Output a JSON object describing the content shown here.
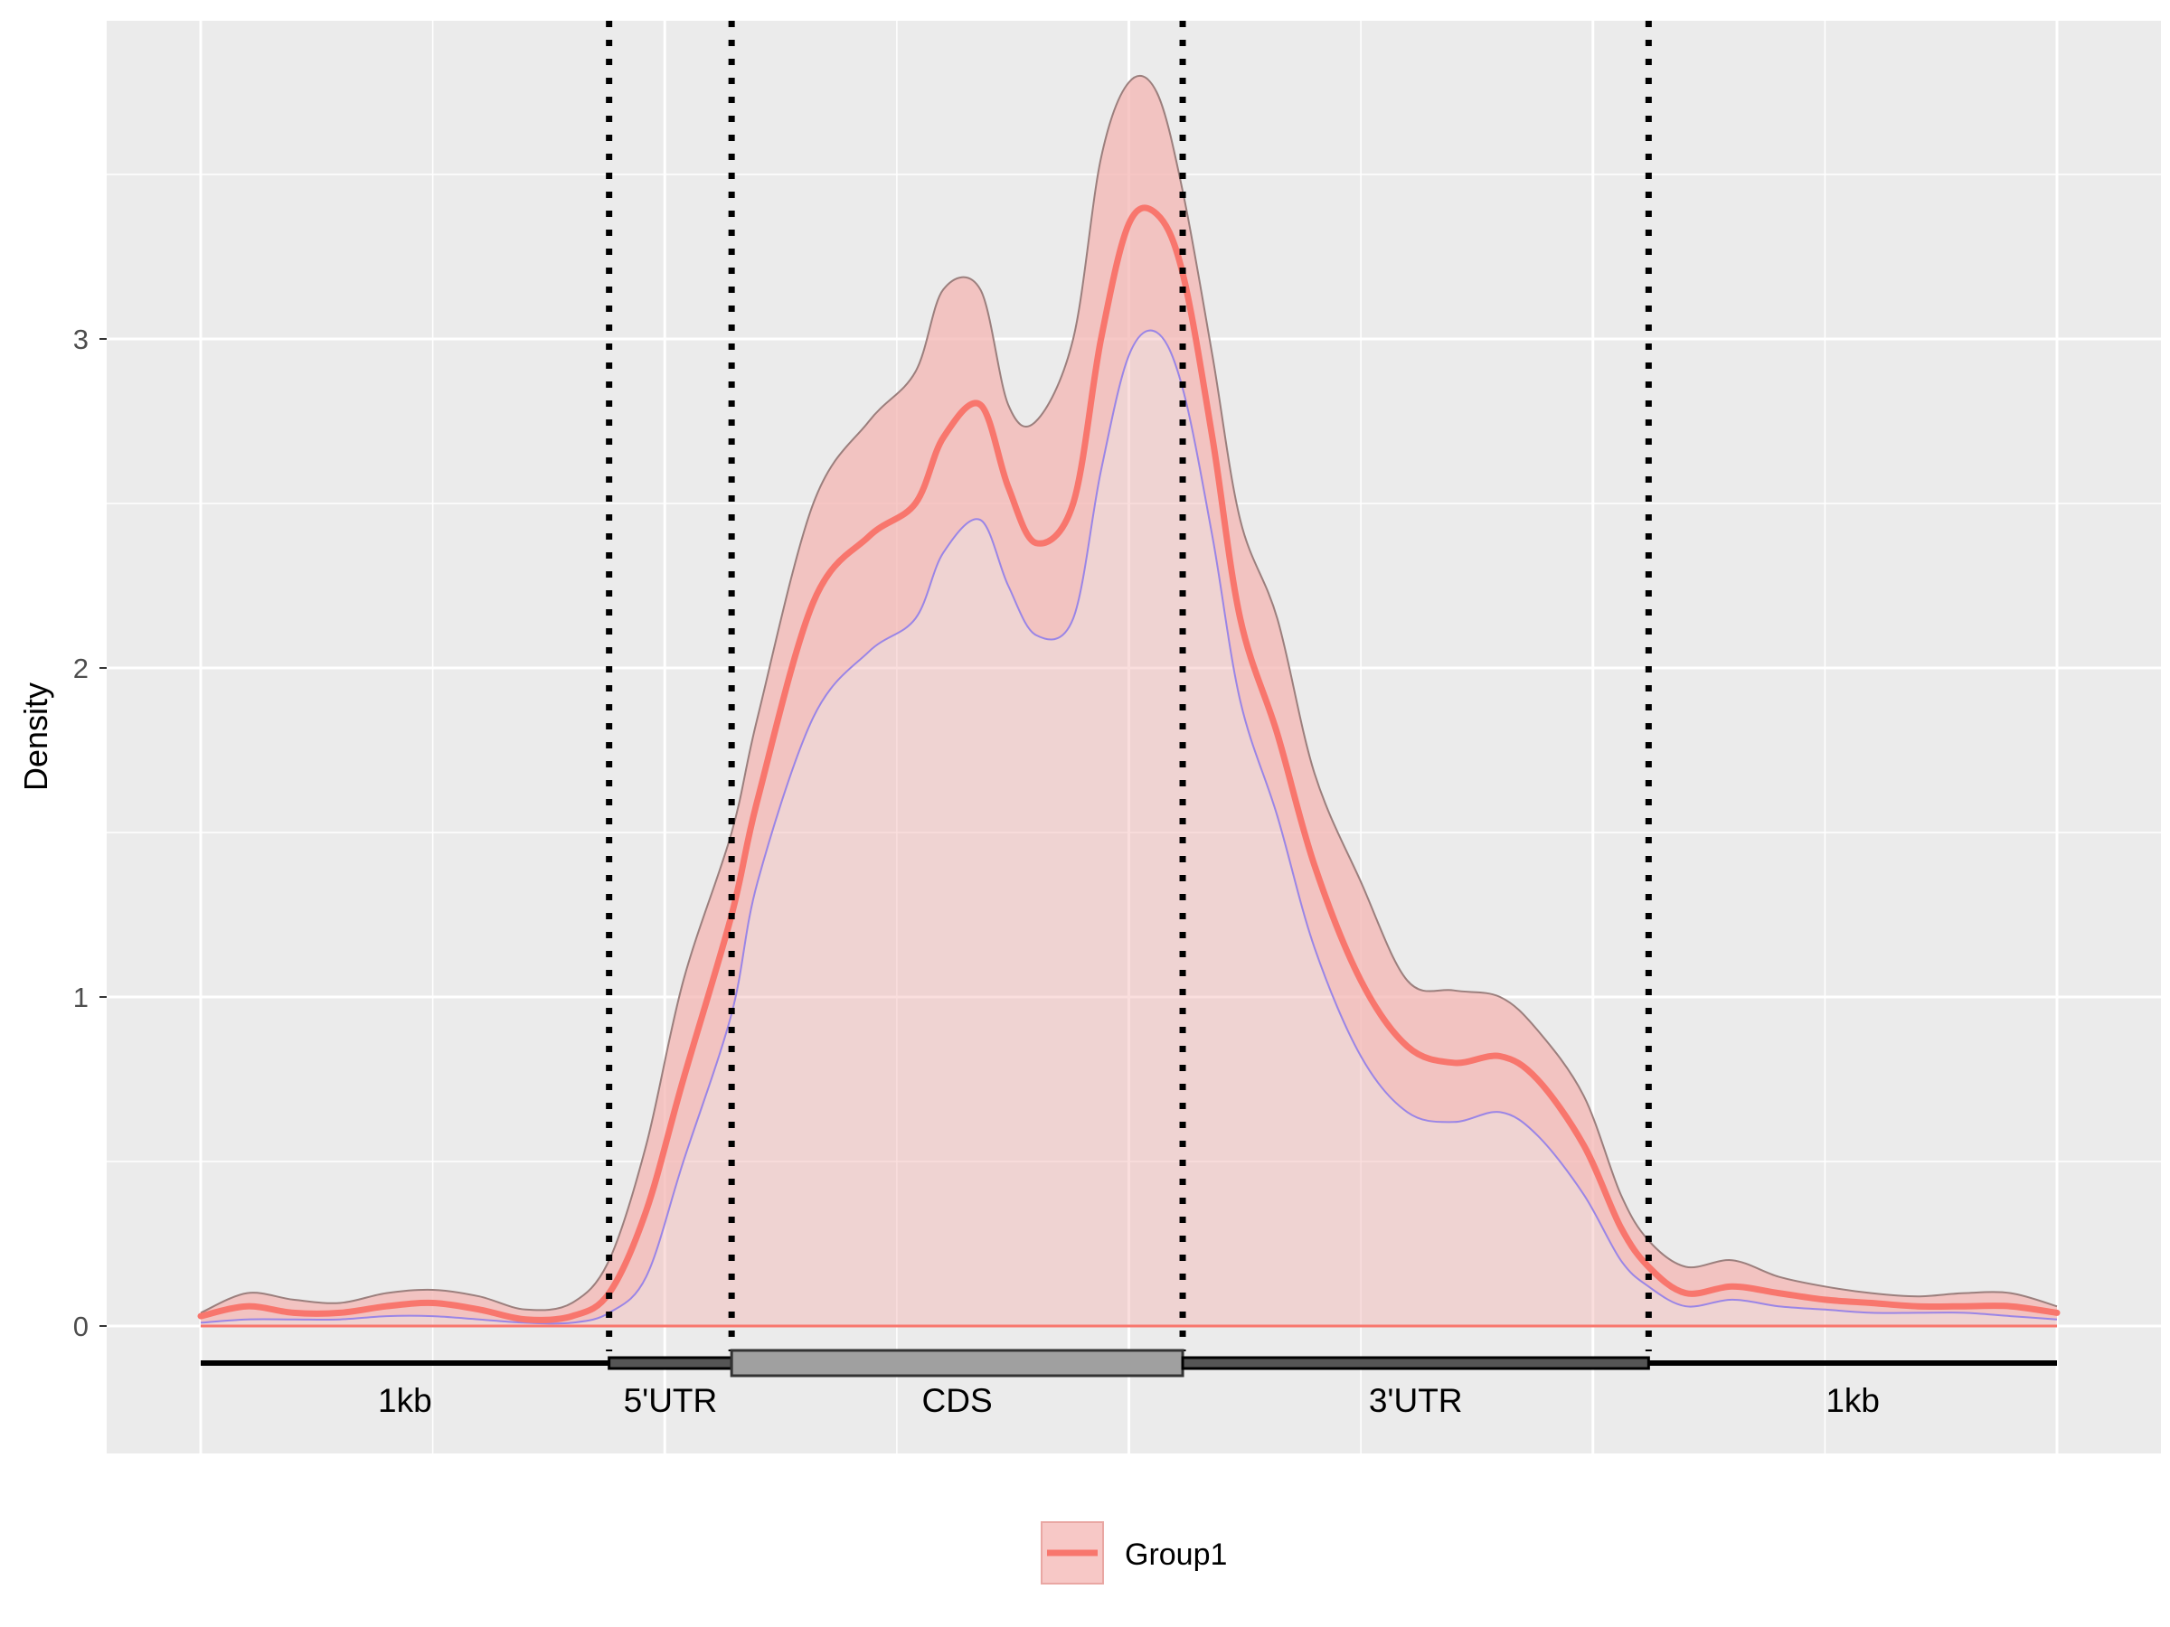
{
  "chart_data": {
    "type": "area",
    "ylabel": "Density",
    "xlim": [
      0,
      1
    ],
    "ylim": [
      -0.37,
      4.0
    ],
    "y_ticks": [
      0,
      1,
      2,
      3
    ],
    "y_tick_labels": [
      "0",
      "1",
      "2",
      "3"
    ],
    "grid": true,
    "legend": {
      "position": "bottom",
      "entries": [
        "Group1"
      ]
    },
    "boundaries": [
      0.22,
      0.286,
      0.529,
      0.78
    ],
    "regions": [
      {
        "label": "1kb",
        "start": 0.0,
        "end": 0.22
      },
      {
        "label": "5'UTR",
        "start": 0.22,
        "end": 0.286
      },
      {
        "label": "CDS",
        "start": 0.286,
        "end": 0.529
      },
      {
        "label": "3'UTR",
        "start": 0.529,
        "end": 0.78
      },
      {
        "label": "1kb",
        "start": 0.78,
        "end": 1.0
      }
    ],
    "series": [
      {
        "name": "Group1",
        "color": "#F8766D",
        "ribbon_color": "#F4B6B3",
        "upper_color": "#9B7F7D",
        "lower_color": "#9A85E6",
        "x": [
          0.0,
          0.025,
          0.05,
          0.075,
          0.1,
          0.125,
          0.15,
          0.175,
          0.2,
          0.22,
          0.24,
          0.26,
          0.286,
          0.3,
          0.33,
          0.36,
          0.385,
          0.4,
          0.42,
          0.435,
          0.45,
          0.47,
          0.485,
          0.5,
          0.515,
          0.529,
          0.545,
          0.56,
          0.58,
          0.6,
          0.625,
          0.65,
          0.675,
          0.7,
          0.72,
          0.745,
          0.765,
          0.78,
          0.8,
          0.825,
          0.85,
          0.875,
          0.9,
          0.925,
          0.95,
          0.975,
          1.0
        ],
        "y": [
          0.03,
          0.06,
          0.04,
          0.04,
          0.06,
          0.07,
          0.05,
          0.02,
          0.03,
          0.1,
          0.35,
          0.75,
          1.25,
          1.6,
          2.2,
          2.4,
          2.5,
          2.7,
          2.8,
          2.55,
          2.38,
          2.5,
          3.0,
          3.35,
          3.38,
          3.2,
          2.7,
          2.15,
          1.8,
          1.4,
          1.05,
          0.85,
          0.8,
          0.82,
          0.75,
          0.55,
          0.3,
          0.18,
          0.1,
          0.12,
          0.1,
          0.08,
          0.07,
          0.06,
          0.06,
          0.06,
          0.04
        ],
        "upper": [
          0.04,
          0.1,
          0.08,
          0.07,
          0.1,
          0.11,
          0.09,
          0.05,
          0.07,
          0.2,
          0.55,
          1.05,
          1.5,
          1.85,
          2.5,
          2.75,
          2.9,
          3.15,
          3.15,
          2.8,
          2.75,
          3.0,
          3.55,
          3.78,
          3.75,
          3.45,
          2.95,
          2.45,
          2.15,
          1.68,
          1.35,
          1.05,
          1.02,
          1.0,
          0.9,
          0.7,
          0.4,
          0.26,
          0.18,
          0.2,
          0.15,
          0.12,
          0.1,
          0.09,
          0.1,
          0.1,
          0.06
        ],
        "lower": [
          0.01,
          0.02,
          0.02,
          0.02,
          0.03,
          0.03,
          0.02,
          0.01,
          0.01,
          0.04,
          0.15,
          0.5,
          0.95,
          1.35,
          1.85,
          2.05,
          2.15,
          2.35,
          2.45,
          2.25,
          2.1,
          2.15,
          2.6,
          2.95,
          3.02,
          2.85,
          2.4,
          1.9,
          1.55,
          1.15,
          0.82,
          0.65,
          0.62,
          0.65,
          0.58,
          0.4,
          0.2,
          0.12,
          0.06,
          0.08,
          0.06,
          0.05,
          0.04,
          0.04,
          0.04,
          0.03,
          0.02
        ]
      }
    ]
  }
}
